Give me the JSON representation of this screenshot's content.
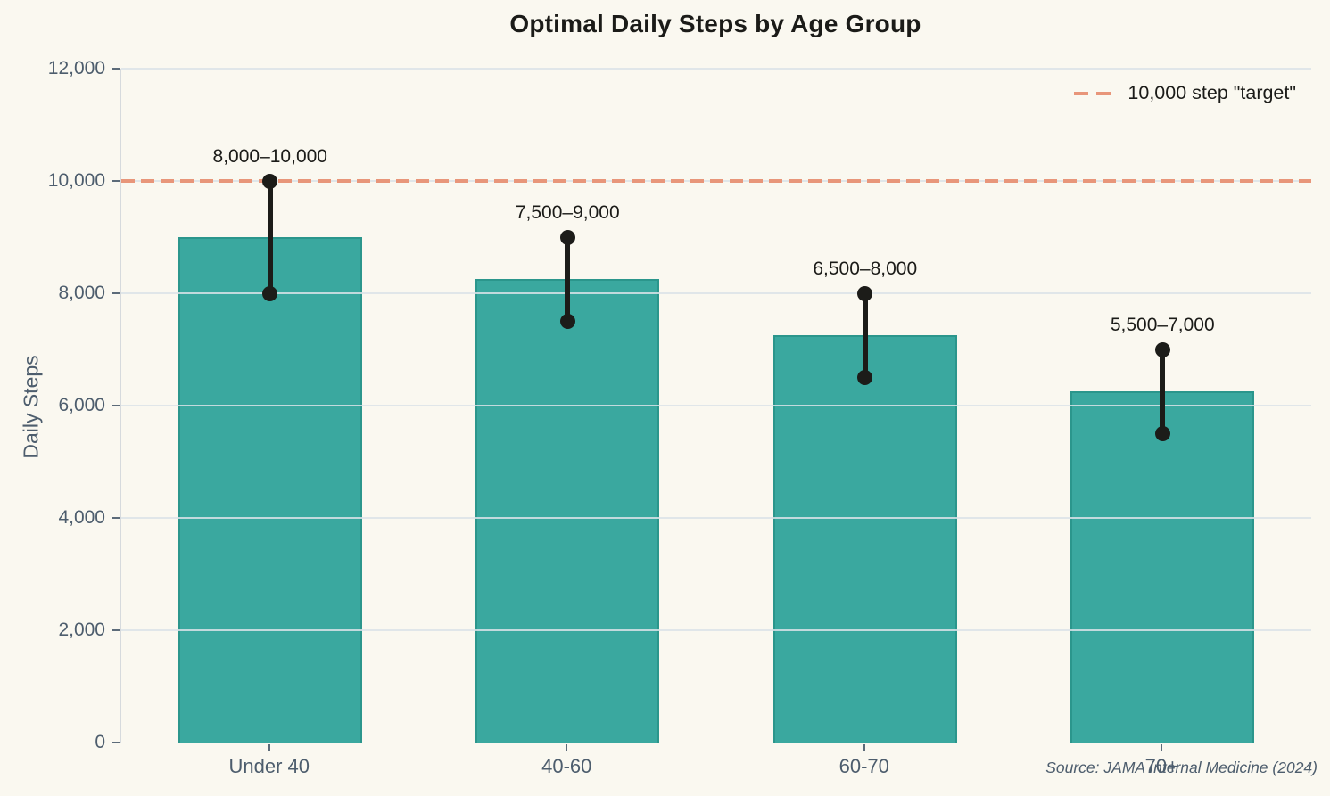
{
  "chart_data": {
    "type": "bar",
    "title": "Optimal Daily Steps by Age Group",
    "xlabel": "",
    "ylabel": "Daily Steps",
    "categories": [
      "Under 40",
      "40-60",
      "60-70",
      "70+"
    ],
    "values": [
      9000,
      8250,
      7250,
      6250
    ],
    "error_ranges": [
      [
        8000,
        10000
      ],
      [
        7500,
        9000
      ],
      [
        6500,
        8000
      ],
      [
        5500,
        7000
      ]
    ],
    "range_labels": [
      "8,000–10,000",
      "7,500–9,000",
      "6,500–8,000",
      "5,500–7,000"
    ],
    "ylim": [
      0,
      12000
    ],
    "yticks": [
      0,
      2000,
      4000,
      6000,
      8000,
      10000,
      12000
    ],
    "ytick_labels": [
      "0",
      "2,000",
      "4,000",
      "6,000",
      "8,000",
      "10,000",
      "12,000"
    ],
    "grid": true,
    "target_line": {
      "value": 10000,
      "label": "10,000 step \"target\""
    },
    "legend": {
      "position": "upper right",
      "entries": [
        {
          "label": "10,000 step \"target\"",
          "style": "dashed",
          "color": "#e8967a"
        }
      ]
    },
    "source": "Source: JAMA Internal Medicine (2024)",
    "colors": {
      "bar_fill": "#3aa89f",
      "bar_edge": "#2b968c",
      "errorbar": "#1c1c19",
      "target_dash": "#e8967a",
      "background": "#faf8f0",
      "axis_text": "#4d5d6d",
      "annotation_text": "#1b1b18"
    }
  }
}
